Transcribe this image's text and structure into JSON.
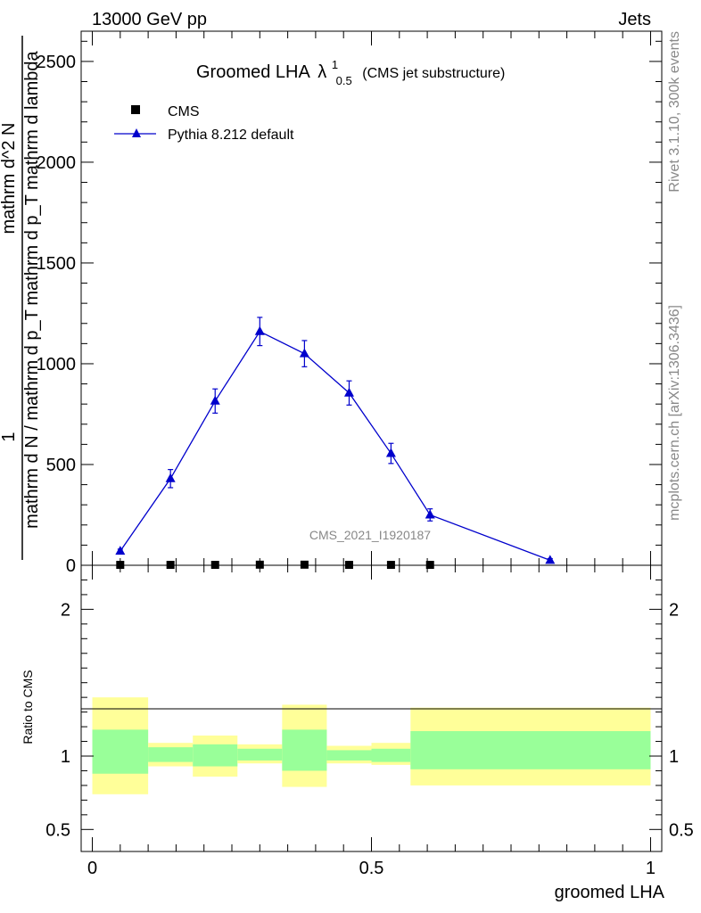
{
  "header": {
    "left": "13000 GeV pp",
    "right": "Jets"
  },
  "title": {
    "main": "Groomed LHA",
    "symbol": "λ",
    "sup": "1",
    "sub": "0.5",
    "suffix": "(CMS jet substructure)"
  },
  "ylabel_main": {
    "frac_num": "1",
    "frac_den": "mathrm d N / mathrm d p_T",
    "deriv_num": "mathrm d^2 N",
    "deriv_den": "mathrm d p_T mathrm d lambda"
  },
  "ylabel_ratio": "Ratio to CMS",
  "xlabel": "groomed LHA",
  "side_top": "Rivet 3.1.10,  300k events",
  "side_bottom": "mcplots.cern.ch [arXiv:1306.3436]",
  "watermark": "CMS_2021_I1920187",
  "legend": [
    {
      "label": "CMS",
      "marker": "square",
      "color": "#000000"
    },
    {
      "label": "Pythia 8.212 default",
      "marker": "triangle",
      "color": "#0000cc"
    }
  ],
  "chart_data": {
    "type": "line",
    "xlim": [
      -0.02,
      1.02
    ],
    "ylim": [
      0,
      2650
    ],
    "ratio_ylim": [
      0.35,
      2.3
    ],
    "x_ticks": [
      "0",
      "0.5",
      "1"
    ],
    "y_ticks": [
      "0",
      "500",
      "1000",
      "1500",
      "2000",
      "2500"
    ],
    "ratio_ticks": [
      "0.5",
      "1",
      "2"
    ],
    "series": [
      {
        "name": "CMS",
        "color": "#000000",
        "x": [
          0.05,
          0.14,
          0.22,
          0.3,
          0.38,
          0.46,
          0.535,
          0.605
        ],
        "y": [
          2,
          2,
          2,
          3,
          3,
          2,
          2,
          2
        ]
      },
      {
        "name": "Pythia 8.212 default",
        "color": "#0000cc",
        "x": [
          0.05,
          0.14,
          0.22,
          0.3,
          0.38,
          0.46,
          0.535,
          0.605,
          0.82
        ],
        "y": [
          70,
          430,
          815,
          1160,
          1050,
          855,
          555,
          250,
          25
        ],
        "err": [
          10,
          45,
          60,
          70,
          65,
          60,
          50,
          30,
          8
        ]
      }
    ],
    "ratio_bands": [
      {
        "x": [
          0.0,
          0.1
        ],
        "inner": [
          0.88,
          1.18
        ],
        "outer": [
          0.74,
          1.4
        ]
      },
      {
        "x": [
          0.1,
          0.18
        ],
        "inner": [
          0.96,
          1.06
        ],
        "outer": [
          0.93,
          1.09
        ]
      },
      {
        "x": [
          0.18,
          0.26
        ],
        "inner": [
          0.93,
          1.08
        ],
        "outer": [
          0.86,
          1.14
        ]
      },
      {
        "x": [
          0.26,
          0.34
        ],
        "inner": [
          0.97,
          1.05
        ],
        "outer": [
          0.95,
          1.08
        ]
      },
      {
        "x": [
          0.34,
          0.42
        ],
        "inner": [
          0.9,
          1.18
        ],
        "outer": [
          0.79,
          1.35
        ]
      },
      {
        "x": [
          0.42,
          0.5
        ],
        "inner": [
          0.97,
          1.04
        ],
        "outer": [
          0.95,
          1.07
        ]
      },
      {
        "x": [
          0.5,
          0.57
        ],
        "inner": [
          0.96,
          1.05
        ],
        "outer": [
          0.94,
          1.09
        ]
      },
      {
        "x": [
          0.57,
          1.0
        ],
        "inner": [
          0.91,
          1.17
        ],
        "outer": [
          0.8,
          1.33
        ]
      }
    ]
  }
}
